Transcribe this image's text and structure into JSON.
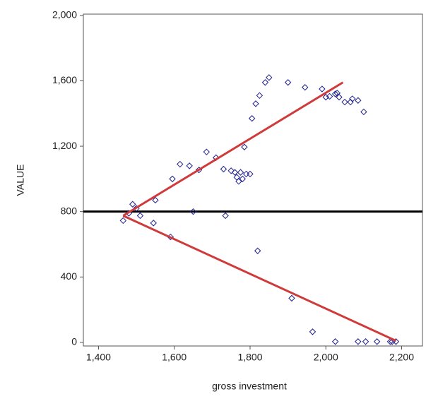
{
  "chart_data": {
    "type": "scatter",
    "x_label": "gross investment",
    "y_label": "VALUE",
    "xlim": [
      1360,
      2255
    ],
    "ylim": [
      -22,
      2008
    ],
    "xticks": [
      {
        "value": 1400,
        "label": "1,400"
      },
      {
        "value": 1600,
        "label": "1,600"
      },
      {
        "value": 1800,
        "label": "1,800"
      },
      {
        "value": 2000,
        "label": "2,000"
      },
      {
        "value": 2200,
        "label": "2,200"
      }
    ],
    "yticks": [
      0,
      400,
      800,
      {
        "value": 1200,
        "label": "1,200"
      },
      {
        "value": 1600,
        "label": "1,600"
      },
      {
        "value": 2000,
        "label": "2,000"
      }
    ],
    "hlines": [
      {
        "value": 800,
        "color": "#000000"
      }
    ],
    "series": [
      {
        "type": "scatter",
        "color": "#1f1f8f",
        "x": [
          1465,
          1480,
          1490,
          1500,
          1510,
          1545,
          1550,
          1590,
          1595,
          1615,
          1640,
          1650,
          1665,
          1685,
          1710,
          1730,
          1735,
          1750,
          1760,
          1765,
          1770,
          1775,
          1780,
          1785,
          1790,
          1800,
          1805,
          1815,
          1820,
          1825,
          1840,
          1850,
          1900,
          1910,
          1945,
          1965,
          1990,
          2000,
          2010,
          2025,
          2025,
          2030,
          2035,
          2050,
          2065,
          2070,
          2085,
          2085,
          2100,
          2105,
          2135,
          2170,
          2175,
          2185
        ],
        "values": [
          745,
          790,
          845,
          820,
          775,
          730,
          870,
          645,
          1000,
          1090,
          1080,
          800,
          1055,
          1165,
          1130,
          1060,
          775,
          1050,
          1040,
          1010,
          985,
          1040,
          1000,
          1195,
          1030,
          1030,
          1370,
          1460,
          560,
          1510,
          1590,
          1620,
          1590,
          270,
          1560,
          65,
          1550,
          1500,
          1505,
          5,
          1520,
          1525,
          1500,
          1470,
          1470,
          1490,
          1480,
          5,
          1410,
          5,
          5,
          5,
          5,
          5
        ]
      },
      {
        "type": "line",
        "color": "#d03a3a",
        "x": [
          1465,
          2045
        ],
        "values": [
          775,
          1590
        ]
      },
      {
        "type": "line",
        "color": "#d03a3a",
        "x": [
          1465,
          2185
        ],
        "values": [
          775,
          10
        ]
      }
    ]
  }
}
